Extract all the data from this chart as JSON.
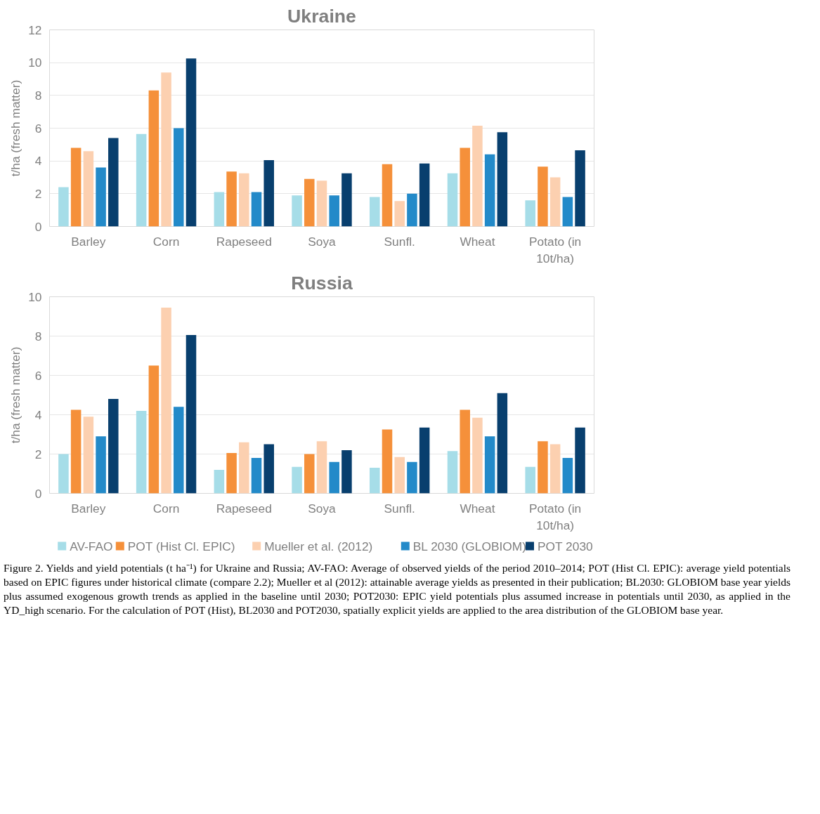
{
  "chart_data": [
    {
      "type": "bar",
      "title": "Ukraine",
      "ylabel": "t/ha (fresh matter)",
      "categories": [
        "Barley",
        "Corn",
        "Rapeseed",
        "Soya",
        "Sunfl.",
        "Wheat",
        "Potato (in 10t/ha)"
      ],
      "ylim": [
        0,
        12
      ],
      "yticks": [
        0,
        2,
        4,
        6,
        8,
        10,
        12
      ],
      "grid": "y",
      "legend": false,
      "series": [
        {
          "color": "#a6dde8",
          "values": [
            2.4,
            5.65,
            2.1,
            1.9,
            1.8,
            3.25,
            1.6
          ]
        },
        {
          "color": "#f5903a",
          "values": [
            4.8,
            8.3,
            3.35,
            2.9,
            3.8,
            4.8,
            3.65
          ]
        },
        {
          "color": "#fcd0b0",
          "values": [
            4.6,
            9.4,
            3.25,
            2.8,
            1.55,
            6.15,
            3.0
          ]
        },
        {
          "color": "#238ac9",
          "values": [
            3.6,
            6.0,
            2.1,
            1.9,
            2.0,
            4.4,
            1.8
          ]
        },
        {
          "color": "#083f6e",
          "values": [
            5.4,
            10.25,
            4.05,
            3.25,
            3.85,
            5.75,
            4.65
          ]
        }
      ]
    },
    {
      "type": "bar",
      "title": "Russia",
      "ylabel": "t/ha (fresh matter)",
      "categories": [
        "Barley",
        "Corn",
        "Rapeseed",
        "Soya",
        "Sunfl.",
        "Wheat",
        "Potato (in 10t/ha)"
      ],
      "ylim": [
        0,
        10
      ],
      "yticks": [
        0,
        2,
        4,
        6,
        8,
        10
      ],
      "grid": "y",
      "legend": "bottom",
      "series": [
        {
          "name": "AV-FAO",
          "color": "#a6dde8",
          "values": [
            2.0,
            4.2,
            1.2,
            1.35,
            1.3,
            2.15,
            1.35
          ]
        },
        {
          "name": "POT (Hist Cl. EPIC)",
          "color": "#f5903a",
          "values": [
            4.25,
            6.5,
            2.05,
            2.0,
            3.25,
            4.25,
            2.65
          ]
        },
        {
          "name": "Mueller et al. (2012)",
          "color": "#fcd0b0",
          "values": [
            3.9,
            9.45,
            2.6,
            2.65,
            1.85,
            3.85,
            2.5
          ]
        },
        {
          "name": "BL 2030 (GLOBIOM)",
          "color": "#238ac9",
          "values": [
            2.9,
            4.4,
            1.8,
            1.6,
            1.6,
            2.9,
            1.8
          ]
        },
        {
          "name": "POT 2030",
          "color": "#083f6e",
          "values": [
            4.8,
            8.05,
            2.5,
            2.2,
            3.35,
            5.1,
            3.35
          ]
        }
      ],
      "annotations": [
        "Figure 2. Yields and yield potentials (t ha⁻¹) for Ukraine and Russia; AV-FAO: Average of observed yields of the period 2010–2014; POT (Hist Cl. EPIC): average yield potentials based on EPIC figures under historical climate (compare 2.2); Mueller et al (2012): attainable average yields as presented in their publication; BL2030: GLOBIOM base year yields plus assumed exogenous growth trends as applied in the baseline until 2030; POT2030: EPIC yield potentials plus assumed increase in potentials until 2030, as applied in the YD_high scenario. For the calculation of POT (Hist), BL2030 and POT2030, spatially explicit yields are applied to the area distribution of the GLOBIOM base year."
      ]
    }
  ]
}
